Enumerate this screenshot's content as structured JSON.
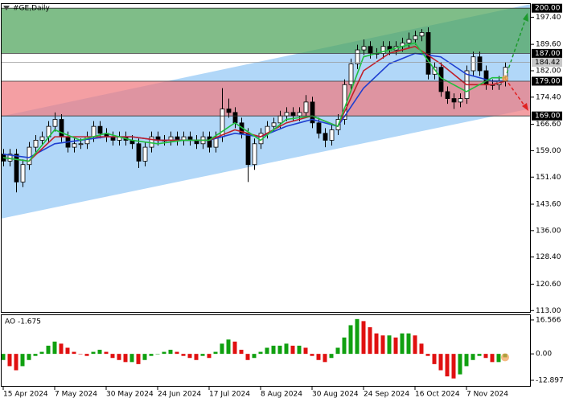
{
  "chart_data": [
    {
      "type": "candlestick",
      "title": "#GE,Daily",
      "categories": [
        "15 Apr 2024",
        null,
        null,
        null,
        null,
        null,
        null,
        null,
        "7 May 2024",
        null,
        null,
        null,
        null,
        null,
        null,
        null,
        "30 May 2024",
        null,
        null,
        null,
        null,
        null,
        null,
        null,
        "24 Jun 2024",
        null,
        null,
        null,
        null,
        null,
        null,
        null,
        "17 Jul 2024",
        null,
        null,
        null,
        null,
        null,
        null,
        null,
        "8 Aug 2024",
        null,
        null,
        null,
        null,
        null,
        null,
        null,
        "30 Aug 2024",
        null,
        null,
        null,
        null,
        null,
        null,
        null,
        "24 Sep 2024",
        null,
        null,
        null,
        null,
        null,
        null,
        null,
        "16 Oct 2024",
        null,
        null,
        null,
        null,
        null,
        null,
        null,
        "7 Nov 2024",
        null,
        null,
        null,
        null,
        null,
        null
      ],
      "candles": [
        [
          158,
          159.5,
          154.5,
          156
        ],
        [
          156,
          159.5,
          154.5,
          158
        ],
        [
          158,
          159.5,
          147,
          150
        ],
        [
          150,
          156.5,
          148.5,
          155
        ],
        [
          155,
          161.5,
          153.5,
          160
        ],
        [
          160,
          163.5,
          158.5,
          162
        ],
        [
          162,
          164.5,
          160.5,
          163
        ],
        [
          163,
          167.5,
          161.5,
          166
        ],
        [
          166,
          170,
          164.5,
          168
        ],
        [
          168,
          169.5,
          161.5,
          163
        ],
        [
          163,
          164.5,
          158.5,
          160
        ],
        [
          160,
          162.5,
          158.5,
          161
        ],
        [
          161,
          162.5,
          159.5,
          161
        ],
        [
          161,
          164.5,
          159.5,
          163
        ],
        [
          163,
          167.5,
          161.5,
          166
        ],
        [
          166,
          167.5,
          162.5,
          164
        ],
        [
          164,
          165.5,
          161.5,
          163
        ],
        [
          163,
          164.5,
          160.5,
          162
        ],
        [
          162,
          164.5,
          160.5,
          163
        ],
        [
          163,
          164.5,
          160.5,
          162
        ],
        [
          162,
          163.5,
          159.5,
          161
        ],
        [
          161,
          162.5,
          154,
          156
        ],
        [
          156,
          161.5,
          154.5,
          160
        ],
        [
          160,
          164.5,
          158.5,
          163
        ],
        [
          163,
          164.5,
          160.5,
          162
        ],
        [
          162,
          163.5,
          160.5,
          162
        ],
        [
          162,
          164.5,
          160.5,
          163
        ],
        [
          163,
          164.5,
          160.5,
          162
        ],
        [
          162,
          164.5,
          160.5,
          163
        ],
        [
          163,
          164.5,
          160.5,
          162
        ],
        [
          162,
          163.5,
          159.5,
          161
        ],
        [
          161,
          164.5,
          159.5,
          163
        ],
        [
          163,
          164.5,
          158.5,
          160
        ],
        [
          160,
          164.5,
          158.5,
          163
        ],
        [
          163,
          177,
          161.5,
          171
        ],
        [
          171,
          174,
          168.5,
          170
        ],
        [
          170,
          171.5,
          165.5,
          167
        ],
        [
          167,
          168.5,
          162.5,
          164
        ],
        [
          164,
          165.5,
          150,
          155
        ],
        [
          155,
          162.5,
          153.5,
          161
        ],
        [
          161,
          165.5,
          159.5,
          164
        ],
        [
          164,
          167.5,
          162.5,
          166
        ],
        [
          166,
          168.5,
          164.5,
          167
        ],
        [
          167,
          170.5,
          165.5,
          169
        ],
        [
          169,
          171.5,
          167.5,
          170
        ],
        [
          170,
          171.5,
          167.5,
          169
        ],
        [
          169,
          171.5,
          167.5,
          170
        ],
        [
          170,
          175,
          168.5,
          173
        ],
        [
          173,
          174.5,
          165.5,
          167
        ],
        [
          167,
          168.5,
          162.5,
          164
        ],
        [
          164,
          165.5,
          160,
          162
        ],
        [
          162,
          166.5,
          160.5,
          165
        ],
        [
          165,
          169.5,
          163.5,
          168
        ],
        [
          168,
          179.5,
          166.5,
          178
        ],
        [
          178,
          185.5,
          176.5,
          184
        ],
        [
          184,
          189.5,
          182.5,
          188
        ],
        [
          188,
          191,
          186.5,
          189
        ],
        [
          189,
          190.5,
          185.5,
          187
        ],
        [
          187,
          188.5,
          185.5,
          187
        ],
        [
          187,
          190.5,
          185.5,
          189
        ],
        [
          189,
          190.5,
          186.5,
          188
        ],
        [
          188,
          190.5,
          186.5,
          189
        ],
        [
          189,
          191.5,
          187.5,
          190
        ],
        [
          190,
          193,
          188.5,
          191
        ],
        [
          191,
          193.5,
          189.5,
          192
        ],
        [
          192,
          194,
          190.5,
          193
        ],
        [
          193,
          194.5,
          179.5,
          181
        ],
        [
          181,
          184.5,
          179.5,
          183
        ],
        [
          183,
          184.5,
          174.5,
          176
        ],
        [
          176,
          177.5,
          172.5,
          174
        ],
        [
          174,
          175.5,
          171,
          173
        ],
        [
          173,
          175.5,
          171.5,
          174
        ],
        [
          174,
          183.5,
          172.5,
          182
        ],
        [
          182,
          187.5,
          180.5,
          186
        ],
        [
          186,
          187.5,
          180.5,
          182
        ],
        [
          182,
          183.5,
          176.5,
          178
        ],
        [
          178,
          179.5,
          176.5,
          178
        ],
        [
          178,
          180.5,
          176.5,
          179
        ],
        [
          179,
          184.5,
          177.5,
          183
        ]
      ],
      "series": [
        {
          "color": "#1f3fd0",
          "x": [
            0,
            4,
            8,
            12,
            16,
            20,
            24,
            28,
            32,
            36,
            40,
            44,
            48,
            52,
            56,
            60,
            64,
            68,
            72,
            76,
            78
          ],
          "values": [
            158,
            157,
            161,
            162,
            163,
            163,
            162,
            162,
            162,
            164,
            163,
            166,
            168,
            166,
            177,
            184,
            187,
            186,
            181,
            179,
            179
          ]
        },
        {
          "color": "#c0202a",
          "x": [
            0,
            4,
            8,
            12,
            16,
            20,
            24,
            28,
            32,
            36,
            40,
            44,
            48,
            52,
            56,
            60,
            64,
            68,
            72,
            76,
            78
          ],
          "values": [
            157,
            156,
            163,
            163,
            163,
            163,
            162,
            162,
            162,
            165,
            163,
            167,
            169,
            166,
            182,
            187,
            189,
            184,
            178,
            178,
            179
          ]
        },
        {
          "color": "#20c040",
          "x": [
            0,
            4,
            8,
            12,
            16,
            20,
            24,
            28,
            32,
            36,
            40,
            44,
            48,
            52,
            56,
            60,
            64,
            68,
            72,
            76,
            78
          ],
          "values": [
            157,
            156,
            165,
            162,
            164,
            162,
            161,
            162,
            162,
            167,
            162,
            168,
            169,
            166,
            186,
            188,
            190,
            180,
            176,
            180,
            180
          ]
        }
      ],
      "ylim": [
        112.6,
        201.2
      ],
      "yticks": [
        {
          "value": 197.4,
          "label": "197.40"
        },
        {
          "value": 189.6,
          "label": "189.60"
        },
        {
          "value": 182,
          "label": "182.00"
        },
        {
          "value": 174.4,
          "label": "174.40"
        },
        {
          "value": 166.6,
          "label": "166.60"
        },
        {
          "value": 159,
          "label": "159.00"
        },
        {
          "value": 151.4,
          "label": "151.40"
        },
        {
          "value": 143.6,
          "label": "143.60"
        },
        {
          "value": 136,
          "label": "136.00"
        },
        {
          "value": 128.4,
          "label": "128.40"
        },
        {
          "value": 120.6,
          "label": "120.60"
        },
        {
          "value": 113,
          "label": "113.00"
        }
      ],
      "levels": [
        {
          "value": 200,
          "label": "200.00",
          "color": "#000000"
        },
        {
          "value": 187,
          "label": "187.00",
          "color": "#000000"
        },
        {
          "value": 184.42,
          "label": "184.42",
          "color": "#c8c8c8"
        },
        {
          "value": 179,
          "label": "179.00",
          "color": "#000000"
        },
        {
          "value": 169,
          "label": "169.00",
          "color": "#000000"
        }
      ],
      "zones": [
        {
          "from": 187,
          "to": 200,
          "color": "#4ea35a"
        },
        {
          "from": 169,
          "to": 179,
          "color": "#f07a80"
        }
      ],
      "channel": {
        "upper": [
          169,
          199.6
        ],
        "lower": [
          139.6,
          169.6
        ],
        "color": "#a9d3f7"
      }
    },
    {
      "type": "bar",
      "title": "AO -1.675",
      "values": [
        -3,
        -6,
        -8,
        -6,
        -3,
        -1,
        1,
        4,
        6,
        5,
        3,
        1,
        0,
        -1,
        1,
        2,
        1,
        -2,
        -3,
        -4,
        -4,
        -5,
        -3,
        -1,
        0,
        1,
        2,
        1,
        -1,
        -2,
        -3,
        -1,
        -2,
        1,
        5,
        7,
        6,
        2,
        -3,
        -2,
        1,
        3,
        4,
        4,
        5,
        4,
        4,
        3,
        -1,
        -3,
        -4,
        -2,
        3,
        8,
        14,
        17,
        16,
        13,
        10,
        9,
        9,
        8,
        10,
        10,
        9,
        5,
        -1,
        -5,
        -8,
        -11,
        -12,
        -10,
        -6,
        -3,
        -1,
        -2,
        -4,
        -4,
        -1.675
      ],
      "up_color": "#10a010",
      "down_color": "#e01010",
      "ylim": [
        -15.65,
        18.9
      ],
      "yticks": [
        16.566,
        {
          "value": 0,
          "label": "0.00"
        },
        -12.897
      ]
    }
  ]
}
